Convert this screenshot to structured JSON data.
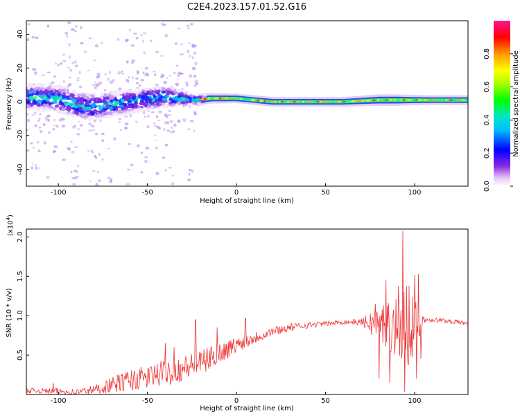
{
  "figure_title": "C2E4.2023.157.01.52.G16",
  "chart_data": [
    {
      "type": "heatmap",
      "ylabel": "Frequency (Hz)",
      "xlabel": "Height of straight line (km)",
      "xlim": [
        -118,
        130
      ],
      "ylim": [
        -50,
        48
      ],
      "xticks": [
        "-100",
        "-50",
        "0",
        "50",
        "100"
      ],
      "xtick_values": [
        -100,
        -50,
        0,
        50,
        100
      ],
      "yticks": [
        "-40",
        "-20",
        "0",
        "20",
        "40"
      ],
      "ytick_values": [
        -40,
        -20,
        0,
        20,
        40
      ],
      "colorbar": {
        "label": "Normalized spectral amplitude",
        "ticks": [
          "0.0",
          "0.2",
          "0.4",
          "0.6",
          "0.8"
        ],
        "tick_values": [
          0.0,
          0.2,
          0.4,
          0.6,
          0.8
        ],
        "range": [
          0,
          1
        ]
      },
      "ridge": {
        "x": [
          -118,
          -100,
          -90,
          -80,
          -60,
          -40,
          -22,
          -15,
          0,
          20,
          40,
          60,
          80,
          90,
          100,
          110,
          130
        ],
        "y": [
          3,
          2,
          -2,
          -3,
          0,
          3,
          1,
          2,
          2,
          0,
          0,
          0,
          1,
          1,
          1,
          1,
          1
        ],
        "spread_hz": [
          6,
          6,
          6,
          6,
          5,
          5,
          2,
          1.6,
          1.5,
          1.5,
          1.5,
          1.5,
          1.8,
          1.8,
          1.6,
          1.5,
          1.5
        ]
      }
    },
    {
      "type": "line",
      "ylabel": "SNR (10 * v/v)",
      "exponent_label": "(x10",
      "exponent_power": "4",
      "exponent_close": ")",
      "xlabel": "Height of straight line (km)",
      "xlim": [
        -118,
        130
      ],
      "ylim": [
        0,
        2.1
      ],
      "xticks": [
        "-100",
        "-50",
        "0",
        "50",
        "100"
      ],
      "xtick_values": [
        -100,
        -50,
        0,
        50,
        100
      ],
      "yticks": [
        "0.5",
        "1.0",
        "1.5",
        "2.0"
      ],
      "ytick_values": [
        0.5,
        1.0,
        1.5,
        2.0
      ],
      "color": "#ee3333",
      "trend": {
        "x": [
          -118,
          -100,
          -90,
          -80,
          -70,
          -60,
          -50,
          -40,
          -30,
          -20,
          -10,
          0,
          10,
          20,
          30,
          40,
          50,
          60,
          70,
          80,
          90,
          95,
          100,
          105,
          110,
          120,
          130
        ],
        "y": [
          0.05,
          0.04,
          0.03,
          0.06,
          0.12,
          0.18,
          0.22,
          0.28,
          0.33,
          0.4,
          0.52,
          0.63,
          0.72,
          0.8,
          0.85,
          0.88,
          0.9,
          0.92,
          0.92,
          0.9,
          0.88,
          0.85,
          0.88,
          0.95,
          0.95,
          0.93,
          0.9
        ],
        "noise": [
          0.03,
          0.04,
          0.04,
          0.06,
          0.1,
          0.14,
          0.15,
          0.17,
          0.17,
          0.16,
          0.14,
          0.1,
          0.08,
          0.06,
          0.05,
          0.04,
          0.03,
          0.03,
          0.04,
          0.25,
          0.4,
          0.55,
          0.35,
          0.05,
          0.03,
          0.03,
          0.03
        ]
      },
      "spikes": [
        {
          "x": -103,
          "y": 0.15
        },
        {
          "x": -40,
          "y": 0.65
        },
        {
          "x": -35,
          "y": 0.6
        },
        {
          "x": -23,
          "y": 0.95
        },
        {
          "x": -11,
          "y": 0.85
        },
        {
          "x": 5,
          "y": 0.97
        },
        {
          "x": 78,
          "y": 1.15
        },
        {
          "x": 80,
          "y": 0.2
        },
        {
          "x": 84,
          "y": 1.45
        },
        {
          "x": 86,
          "y": 0.15
        },
        {
          "x": 91,
          "y": 1.38
        },
        {
          "x": 93.5,
          "y": 2.08
        },
        {
          "x": 94.5,
          "y": 0.03
        },
        {
          "x": 97,
          "y": 1.38
        },
        {
          "x": 100,
          "y": 1.52
        },
        {
          "x": 101,
          "y": 0.2
        },
        {
          "x": 102,
          "y": 1.53
        },
        {
          "x": 103.5,
          "y": 0.45
        }
      ]
    }
  ]
}
